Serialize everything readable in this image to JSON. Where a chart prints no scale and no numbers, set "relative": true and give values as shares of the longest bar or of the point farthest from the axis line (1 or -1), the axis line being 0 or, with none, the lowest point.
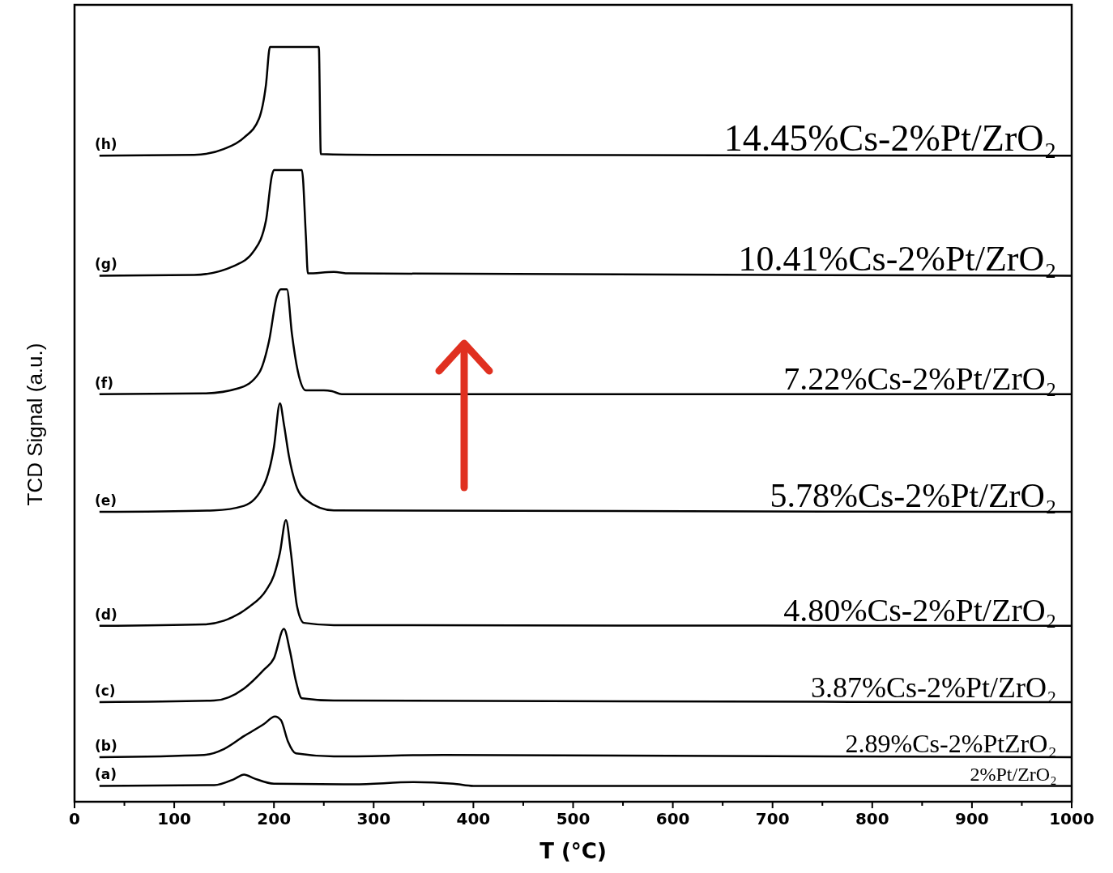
{
  "chart_data": {
    "type": "line",
    "relative": true,
    "xlabel": "T (°C)",
    "ylabel": "TCD Signal (a.u.)",
    "xlim": [
      0,
      1000
    ],
    "xticks": [
      0,
      {
        "value": 50,
        "label": null
      },
      100,
      {
        "value": 150,
        "label": null
      },
      200,
      {
        "value": 250,
        "label": null
      },
      300,
      {
        "value": 350,
        "label": null
      },
      400,
      {
        "value": 450,
        "label": null
      },
      500,
      {
        "value": 550,
        "label": null
      },
      600,
      {
        "value": 650,
        "label": null
      },
      700,
      {
        "value": 750,
        "label": null
      },
      800,
      {
        "value": 850,
        "label": null
      },
      900,
      {
        "value": 950,
        "label": null
      },
      1000
    ],
    "grid": false,
    "legend": false,
    "marker": "none",
    "line_style": "solid",
    "series": [
      {
        "name": "(a)",
        "color": "#000000",
        "x": [
          25,
          140,
          160,
          170,
          180,
          200,
          280,
          340,
          380,
          400,
          1000
        ],
        "values": [
          0.021,
          0.022,
          0.03,
          0.036,
          0.031,
          0.024,
          0.023,
          0.026,
          0.024,
          0.021,
          0.021
        ]
      },
      {
        "name": "(b)",
        "color": "#000000",
        "x": [
          25,
          130,
          150,
          170,
          190,
          201,
          207,
          214,
          222,
          260,
          370,
          1000
        ],
        "values": [
          0.059,
          0.062,
          0.07,
          0.087,
          0.103,
          0.113,
          0.108,
          0.08,
          0.064,
          0.06,
          0.062,
          0.059
        ]
      },
      {
        "name": "(c)",
        "color": "#000000",
        "x": [
          25,
          140,
          170,
          190,
          200,
          210,
          216,
          222,
          228,
          260,
          1000
        ],
        "values": [
          0.132,
          0.134,
          0.15,
          0.175,
          0.19,
          0.229,
          0.2,
          0.16,
          0.137,
          0.134,
          0.132
        ]
      },
      {
        "name": "(d)",
        "color": "#000000",
        "x": [
          25,
          130,
          150,
          175,
          192,
          200,
          206,
          212,
          217,
          223,
          230,
          260,
          1000
        ],
        "values": [
          0.233,
          0.235,
          0.24,
          0.258,
          0.28,
          0.3,
          0.33,
          0.373,
          0.33,
          0.26,
          0.237,
          0.234,
          0.233
        ]
      },
      {
        "name": "(e)",
        "color": "#000000",
        "x": [
          25,
          140,
          170,
          190,
          200,
          206,
          210,
          215,
          222,
          232,
          260,
          1000
        ],
        "values": [
          0.384,
          0.386,
          0.392,
          0.42,
          0.47,
          0.528,
          0.5,
          0.458,
          0.42,
          0.4,
          0.386,
          0.384
        ]
      },
      {
        "name": "(f)",
        "color": "#000000",
        "x": [
          25,
          130,
          165,
          185,
          195,
          203,
          207,
          213,
          218,
          224,
          232,
          250,
          258,
          268,
          1000
        ],
        "values": [
          0.54,
          0.541,
          0.548,
          0.568,
          0.61,
          0.67,
          0.679,
          0.679,
          0.62,
          0.57,
          0.545,
          0.545,
          0.544,
          0.54,
          0.54
        ]
      },
      {
        "name": "(g)",
        "color": "#000000",
        "x": [
          25,
          120,
          160,
          180,
          192,
          198,
          200,
          228,
          232,
          234,
          260,
          275,
          1000
        ],
        "values": [
          0.697,
          0.698,
          0.71,
          0.73,
          0.77,
          0.83,
          0.837,
          0.837,
          0.75,
          0.7,
          0.702,
          0.7,
          0.697
        ]
      },
      {
        "name": "(h)",
        "color": "#000000",
        "x": [
          25,
          120,
          150,
          170,
          185,
          192,
          196,
          245,
          247,
          300,
          1000
        ],
        "values": [
          0.856,
          0.857,
          0.865,
          0.88,
          0.905,
          0.95,
          1.0,
          1.0,
          0.858,
          0.857,
          0.856
        ]
      }
    ],
    "annotations": [
      "2%Pt/ZrO₂",
      "2.89%Cs-2%PtZrO₂",
      "3.87%Cs-2%Pt/ZrO₂",
      "4.80%Cs-2%Pt/ZrO₂",
      "5.78%Cs-2%Pt/ZrO₂",
      "7.22%Cs-2%Pt/ZrO₂",
      "10.41%Cs-2%Pt/ZrO₂",
      "14.45%Cs-2%Pt/ZrO₂"
    ]
  }
}
